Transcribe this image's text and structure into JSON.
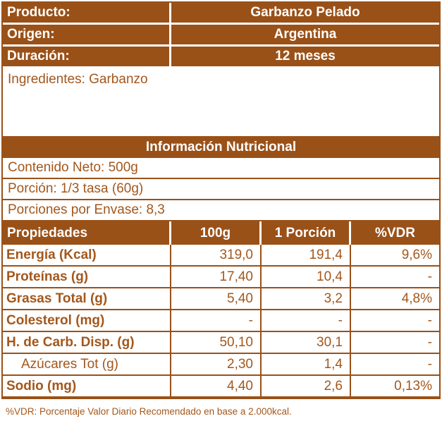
{
  "colors": {
    "brown_fill": "#9A5118",
    "brown_text": "#A3571C",
    "white": "#FFFFFF"
  },
  "product_info": {
    "rows": [
      {
        "label": "Producto:",
        "value": "Garbanzo Pelado"
      },
      {
        "label": "Origen:",
        "value": "Argentina"
      },
      {
        "label": "Duración:",
        "value": "12 meses"
      }
    ]
  },
  "ingredients": {
    "text": "Ingredientes: Garbanzo"
  },
  "section_title": "Información Nutricional",
  "summary": {
    "rows": [
      "Contenido Neto: 500g",
      "Porción: 1/3 tasa (60g)",
      "Porciones por Envase: 8,3"
    ]
  },
  "nutrition_table": {
    "headers": [
      "Propiedades",
      "100g",
      "1 Porción",
      "%VDR"
    ],
    "rows": [
      {
        "label": "Energía (Kcal)",
        "per_100g": "319,0",
        "per_portion": "191,4",
        "vdr": "9,6%"
      },
      {
        "label": "Proteínas (g)",
        "per_100g": "17,40",
        "per_portion": "10,4",
        "vdr": "-"
      },
      {
        "label": "Grasas Total (g)",
        "per_100g": "5,40",
        "per_portion": "3,2",
        "vdr": "4,8%"
      },
      {
        "label": "Colesterol (mg)",
        "per_100g": "-",
        "per_portion": "-",
        "vdr": "-"
      },
      {
        "label": "H. de Carb. Disp. (g)",
        "per_100g": "50,10",
        "per_portion": "30,1",
        "vdr": "-"
      },
      {
        "label": "Azúcares Tot (g)",
        "per_100g": "2,30",
        "per_portion": "1,4",
        "vdr": "-"
      },
      {
        "label": "Sodio (mg)",
        "per_100g": "4,40",
        "per_portion": "2,6",
        "vdr": "0,13%"
      }
    ]
  },
  "footnote": "%VDR: Porcentaje Valor Diario Recomendado en base a 2.000kcal."
}
